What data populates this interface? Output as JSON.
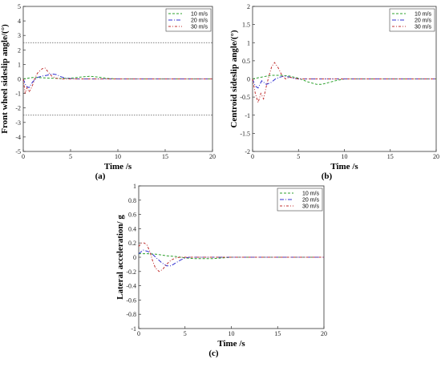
{
  "chart_data": [
    {
      "id": "a",
      "type": "line",
      "panel_label": "(a)",
      "xlabel": "Time /s",
      "ylabel": "Front wheel sideslip angle/(°)",
      "xlim": [
        0,
        20
      ],
      "ylim": [
        -5,
        5
      ],
      "xticks": [
        0,
        5,
        10,
        15,
        20
      ],
      "yticks": [
        -5,
        -4,
        -3,
        -2,
        -1,
        0,
        1,
        2,
        3,
        4,
        5
      ],
      "grid": false,
      "legend_position": "top-right",
      "reference_lines": [
        2.5,
        -2.5
      ],
      "series": [
        {
          "name": "10 m/s",
          "color": "#2ca02c",
          "dash": "3,2",
          "x": [
            0,
            0.5,
            1,
            1.5,
            2,
            3,
            4,
            5,
            6,
            7,
            8,
            9,
            10,
            20
          ],
          "y": [
            0,
            0.05,
            0.1,
            0.1,
            0.08,
            0.05,
            0.03,
            0.05,
            0.12,
            0.18,
            0.12,
            0.03,
            0,
            0
          ]
        },
        {
          "name": "20 m/s",
          "color": "#3030d0",
          "dash": "5,2,1,2",
          "x": [
            0,
            0.3,
            0.6,
            1,
            1.5,
            2,
            2.5,
            3,
            3.5,
            4,
            4.5,
            5,
            6,
            20
          ],
          "y": [
            0,
            -0.5,
            -0.6,
            -0.2,
            0.1,
            0.2,
            0.25,
            0.35,
            0.3,
            0.15,
            0.05,
            0.02,
            0,
            0
          ]
        },
        {
          "name": "30 m/s",
          "color": "#c03030",
          "dash": "3,2,1,2",
          "x": [
            0,
            0.2,
            0.4,
            0.6,
            0.8,
            1,
            1.2,
            1.5,
            2,
            2.3,
            2.6,
            3,
            3.5,
            4,
            5,
            20
          ],
          "y": [
            0,
            -1,
            -0.6,
            -0.9,
            -0.7,
            -0.4,
            0,
            0.4,
            0.7,
            0.75,
            0.5,
            0.2,
            0.05,
            0,
            0,
            0
          ]
        }
      ]
    },
    {
      "id": "b",
      "type": "line",
      "panel_label": "(b)",
      "xlabel": "Time /s",
      "ylabel": "Centroid sideslip angle/(°)",
      "xlim": [
        0,
        20
      ],
      "ylim": [
        -2,
        2
      ],
      "xticks": [
        0,
        5,
        10,
        15,
        20
      ],
      "yticks": [
        -2,
        -1.5,
        -1,
        -0.5,
        0,
        0.5,
        1,
        1.5,
        2
      ],
      "grid": false,
      "legend_position": "top-right",
      "series": [
        {
          "name": "10 m/s",
          "color": "#2ca02c",
          "dash": "3,2",
          "x": [
            0,
            1,
            2,
            3,
            4,
            5,
            6,
            7,
            7.5,
            8,
            9,
            10,
            20
          ],
          "y": [
            0,
            0.05,
            0.1,
            0.1,
            0.08,
            0.02,
            -0.08,
            -0.15,
            -0.15,
            -0.12,
            -0.05,
            0,
            0
          ]
        },
        {
          "name": "20 m/s",
          "color": "#3030d0",
          "dash": "5,2,1,2",
          "x": [
            0,
            0.3,
            0.6,
            1,
            1.5,
            2,
            2.5,
            3,
            3.5,
            4,
            4.5,
            5,
            20
          ],
          "y": [
            0,
            -0.2,
            -0.25,
            -0.05,
            -0.15,
            -0.1,
            0,
            0.05,
            0.08,
            0.05,
            0.02,
            0,
            0
          ]
        },
        {
          "name": "30 m/s",
          "color": "#c03030",
          "dash": "3,2,1,2",
          "x": [
            0,
            0.3,
            0.6,
            0.9,
            1.2,
            1.5,
            1.8,
            2.1,
            2.4,
            2.8,
            3.2,
            3.6,
            4,
            4.5,
            5,
            20
          ],
          "y": [
            0,
            -0.4,
            -0.65,
            -0.4,
            -0.55,
            -0.2,
            0.1,
            0.35,
            0.45,
            0.3,
            0.1,
            0,
            0.05,
            0.02,
            0,
            0
          ]
        }
      ]
    },
    {
      "id": "c",
      "type": "line",
      "panel_label": "(c)",
      "xlabel": "Time /s",
      "ylabel": "Lateral acceleration/ g",
      "xlim": [
        0,
        20
      ],
      "ylim": [
        -1,
        1
      ],
      "xticks": [
        0,
        5,
        10,
        15,
        20
      ],
      "yticks": [
        -1,
        -0.8,
        -0.6,
        -0.4,
        -0.2,
        0,
        0.2,
        0.4,
        0.6,
        0.8,
        1
      ],
      "grid": false,
      "legend_position": "top-right",
      "series": [
        {
          "name": "10 m/s",
          "color": "#2ca02c",
          "dash": "3,2",
          "x": [
            0,
            1,
            2,
            3,
            4,
            5,
            6,
            7,
            8,
            9,
            10,
            20
          ],
          "y": [
            0.05,
            0.05,
            0.04,
            0.02,
            0.01,
            -0.01,
            -0.02,
            -0.02,
            -0.02,
            -0.01,
            0,
            0
          ]
        },
        {
          "name": "20 m/s",
          "color": "#3030d0",
          "dash": "5,2,1,2",
          "x": [
            0,
            0.5,
            1,
            1.5,
            2,
            2.5,
            3,
            3.5,
            4,
            4.5,
            5,
            5.5,
            6,
            20
          ],
          "y": [
            0.05,
            0.1,
            0.08,
            0.04,
            -0.02,
            -0.08,
            -0.12,
            -0.12,
            -0.08,
            -0.04,
            -0.01,
            0,
            0,
            0
          ]
        },
        {
          "name": "30 m/s",
          "color": "#c03030",
          "dash": "3,2,1,2",
          "x": [
            0,
            0.3,
            0.6,
            0.9,
            1.2,
            1.5,
            1.8,
            2.2,
            2.6,
            3,
            3.5,
            4,
            4.5,
            5,
            20
          ],
          "y": [
            0.15,
            0.2,
            0.2,
            0.17,
            0.08,
            -0.05,
            -0.15,
            -0.2,
            -0.17,
            -0.1,
            -0.04,
            -0.01,
            0,
            0,
            0
          ]
        }
      ]
    }
  ]
}
